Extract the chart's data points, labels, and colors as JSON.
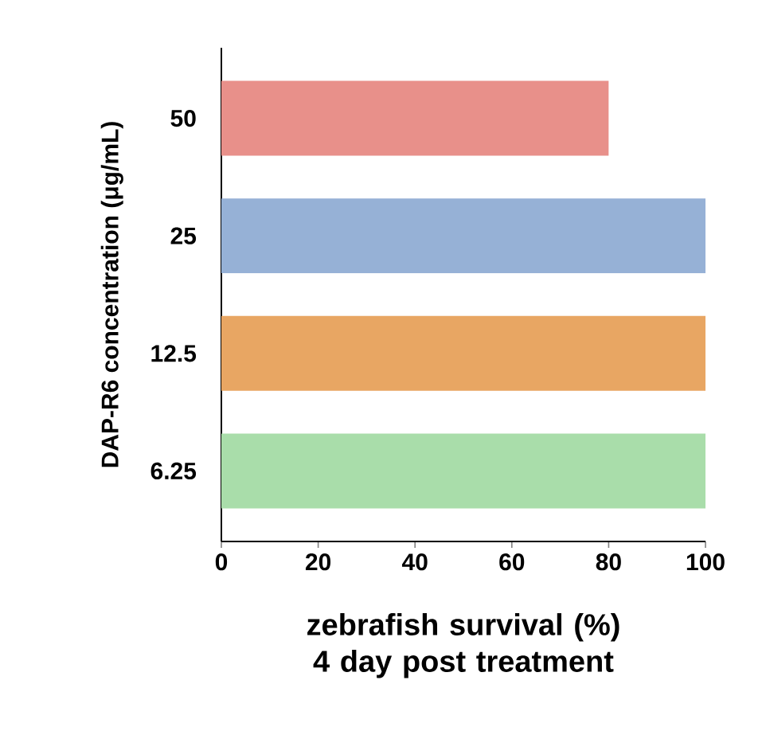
{
  "chart_data": {
    "type": "bar",
    "orientation": "horizontal",
    "xlabel": "zebrafish survival (%) 4 day post treatment",
    "ylabel": "DAP-R6 concentration (μg/mL)",
    "categories": [
      "50",
      "25",
      "12.5",
      "6.25"
    ],
    "values": [
      80,
      100,
      100,
      100
    ],
    "colors": [
      "#e8908a",
      "#96b1d6",
      "#e8a663",
      "#a9ddaa"
    ],
    "xlim": [
      0,
      100
    ],
    "xticks": [
      0,
      20,
      40,
      60,
      80,
      100
    ]
  }
}
